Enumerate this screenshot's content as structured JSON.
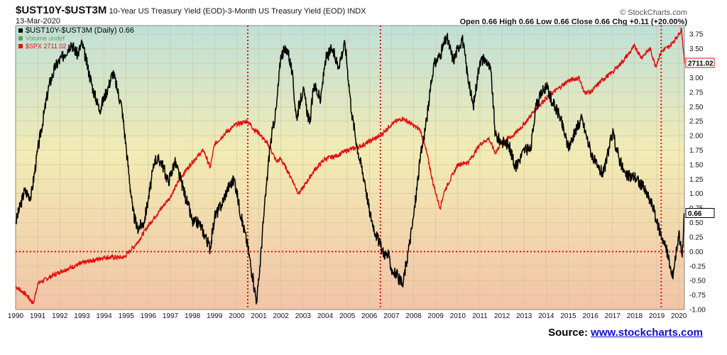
{
  "header": {
    "symbol": "$UST10Y-$UST3M",
    "description": "10-Year US Treasury Yield (EOD)-3-Month US Treasury Yield (EOD)",
    "exchange": "INDX",
    "date": "13-Mar-2020",
    "copyright": "© StockCharts.com",
    "quote": "Open 0.66  High 0.66  Low 0.66  Close 0.66  Chg +0.11 (+20.00%)"
  },
  "source": {
    "label": "Source:",
    "link": "www.stockcharts.com"
  },
  "colors": {
    "spread": "#000000",
    "spx": "#e01010",
    "marker": "#e01010",
    "bg_top": "#bfe0d8",
    "bg_mid": "#f2ebb4",
    "bg_bottom": "#f2c4a6"
  },
  "chart_data": {
    "type": "line",
    "x_axis": {
      "ticks": [
        "1990",
        "1991",
        "1992",
        "1993",
        "1994",
        "1995",
        "1996",
        "1997",
        "1998",
        "1999",
        "2000",
        "2001",
        "2002",
        "2003",
        "2004",
        "2005",
        "2006",
        "2007",
        "2008",
        "2009",
        "2010",
        "2011",
        "2012",
        "2013",
        "2014",
        "2015",
        "2016",
        "2017",
        "2018",
        "2019",
        "2020"
      ],
      "range": [
        1990,
        2020.25
      ]
    },
    "y_axis": {
      "ticks": [
        "3.75",
        "3.50",
        "3.25",
        "3.00",
        "2.75",
        "2.50",
        "2.25",
        "2.00",
        "1.75",
        "1.50",
        "1.25",
        "1.00",
        "0.75",
        "0.50",
        "0.25",
        "0.00",
        "-0.25",
        "-0.50",
        "-0.75",
        "-1.00"
      ],
      "range": [
        -1.0,
        3.9
      ]
    },
    "legend": [
      {
        "name": "$UST10Y-$UST3M (Daily) 0.66",
        "color": "#000000"
      },
      {
        "name": "Volume undef",
        "color": "#6a9a6a"
      },
      {
        "name": "$SPX 2711.02",
        "color": "#e01010"
      }
    ],
    "series": [
      {
        "name": "$UST10Y-$UST3M",
        "last_label": "0.66",
        "points": [
          [
            1990.0,
            0.5
          ],
          [
            1990.4,
            1.05
          ],
          [
            1990.7,
            0.95
          ],
          [
            1991.0,
            1.75
          ],
          [
            1991.5,
            2.85
          ],
          [
            1991.8,
            3.2
          ],
          [
            1992.2,
            3.4
          ],
          [
            1992.5,
            3.6
          ],
          [
            1992.8,
            3.4
          ],
          [
            1993.0,
            3.6
          ],
          [
            1993.5,
            2.8
          ],
          [
            1993.8,
            2.45
          ],
          [
            1994.2,
            2.85
          ],
          [
            1994.4,
            3.1
          ],
          [
            1994.8,
            2.5
          ],
          [
            1995.0,
            1.8
          ],
          [
            1995.3,
            0.7
          ],
          [
            1995.5,
            0.4
          ],
          [
            1995.8,
            0.5
          ],
          [
            1996.0,
            0.9
          ],
          [
            1996.3,
            1.6
          ],
          [
            1996.6,
            1.55
          ],
          [
            1996.9,
            1.2
          ],
          [
            1997.2,
            1.55
          ],
          [
            1997.5,
            1.2
          ],
          [
            1997.8,
            0.8
          ],
          [
            1998.0,
            0.5
          ],
          [
            1998.3,
            0.5
          ],
          [
            1998.6,
            0.25
          ],
          [
            1998.8,
            0.05
          ],
          [
            1999.0,
            0.6
          ],
          [
            1999.3,
            0.8
          ],
          [
            1999.6,
            1.1
          ],
          [
            1999.9,
            1.25
          ],
          [
            2000.2,
            0.6
          ],
          [
            2000.5,
            0.1
          ],
          [
            2000.7,
            -0.4
          ],
          [
            2000.9,
            -0.85
          ],
          [
            2001.0,
            -0.5
          ],
          [
            2001.2,
            0.5
          ],
          [
            2001.5,
            1.8
          ],
          [
            2001.8,
            2.5
          ],
          [
            2002.0,
            3.4
          ],
          [
            2002.3,
            3.5
          ],
          [
            2002.5,
            3.1
          ],
          [
            2002.7,
            2.3
          ],
          [
            2003.0,
            2.8
          ],
          [
            2003.3,
            2.2
          ],
          [
            2003.5,
            2.9
          ],
          [
            2003.8,
            2.6
          ],
          [
            2004.0,
            3.3
          ],
          [
            2004.3,
            3.5
          ],
          [
            2004.6,
            3.2
          ],
          [
            2004.9,
            3.6
          ],
          [
            2005.2,
            2.4
          ],
          [
            2005.5,
            1.7
          ],
          [
            2005.8,
            1.2
          ],
          [
            2006.0,
            0.7
          ],
          [
            2006.3,
            0.3
          ],
          [
            2006.6,
            0.0
          ],
          [
            2006.9,
            -0.1
          ],
          [
            2007.0,
            -0.3
          ],
          [
            2007.3,
            -0.45
          ],
          [
            2007.5,
            -0.6
          ],
          [
            2007.8,
            0.1
          ],
          [
            2008.0,
            0.6
          ],
          [
            2008.3,
            1.6
          ],
          [
            2008.6,
            2.3
          ],
          [
            2008.9,
            3.2
          ],
          [
            2009.2,
            3.4
          ],
          [
            2009.5,
            3.7
          ],
          [
            2009.8,
            3.3
          ],
          [
            2010.0,
            3.5
          ],
          [
            2010.2,
            3.7
          ],
          [
            2010.5,
            2.9
          ],
          [
            2010.7,
            2.5
          ],
          [
            2011.0,
            3.3
          ],
          [
            2011.3,
            3.3
          ],
          [
            2011.5,
            3.1
          ],
          [
            2011.7,
            2.0
          ],
          [
            2012.0,
            1.9
          ],
          [
            2012.3,
            1.85
          ],
          [
            2012.6,
            1.45
          ],
          [
            2013.0,
            1.75
          ],
          [
            2013.3,
            1.75
          ],
          [
            2013.5,
            2.45
          ],
          [
            2013.8,
            2.75
          ],
          [
            2014.0,
            2.85
          ],
          [
            2014.3,
            2.55
          ],
          [
            2014.6,
            2.35
          ],
          [
            2015.0,
            1.8
          ],
          [
            2015.3,
            2.05
          ],
          [
            2015.6,
            2.3
          ],
          [
            2016.0,
            1.75
          ],
          [
            2016.3,
            1.45
          ],
          [
            2016.6,
            1.35
          ],
          [
            2017.0,
            2.05
          ],
          [
            2017.3,
            1.6
          ],
          [
            2017.6,
            1.3
          ],
          [
            2018.0,
            1.3
          ],
          [
            2018.4,
            1.1
          ],
          [
            2018.8,
            0.8
          ],
          [
            2019.0,
            0.5
          ],
          [
            2019.3,
            0.2
          ],
          [
            2019.5,
            -0.05
          ],
          [
            2019.7,
            -0.45
          ],
          [
            2019.9,
            0.05
          ],
          [
            2020.0,
            0.35
          ],
          [
            2020.15,
            -0.1
          ],
          [
            2020.25,
            0.66
          ]
        ]
      },
      {
        "name": "$SPX",
        "last_label": "2711.02",
        "points": [
          [
            1990.0,
            -0.6
          ],
          [
            1990.5,
            -0.75
          ],
          [
            1990.8,
            -0.9
          ],
          [
            1991.0,
            -0.55
          ],
          [
            1991.5,
            -0.45
          ],
          [
            1992.0,
            -0.35
          ],
          [
            1993.0,
            -0.2
          ],
          [
            1994.0,
            -0.1
          ],
          [
            1994.9,
            -0.1
          ],
          [
            1995.5,
            0.15
          ],
          [
            1996.0,
            0.45
          ],
          [
            1996.5,
            0.7
          ],
          [
            1997.0,
            0.95
          ],
          [
            1997.5,
            1.3
          ],
          [
            1998.0,
            1.55
          ],
          [
            1998.5,
            1.75
          ],
          [
            1998.8,
            1.45
          ],
          [
            1999.0,
            1.85
          ],
          [
            1999.5,
            2.05
          ],
          [
            2000.0,
            2.2
          ],
          [
            2000.5,
            2.25
          ],
          [
            2000.8,
            2.1
          ],
          [
            2001.0,
            2.05
          ],
          [
            2001.5,
            1.8
          ],
          [
            2001.8,
            1.55
          ],
          [
            2002.0,
            1.6
          ],
          [
            2002.5,
            1.25
          ],
          [
            2002.8,
            1.0
          ],
          [
            2003.0,
            1.1
          ],
          [
            2003.5,
            1.4
          ],
          [
            2004.0,
            1.6
          ],
          [
            2004.5,
            1.65
          ],
          [
            2005.0,
            1.75
          ],
          [
            2005.5,
            1.8
          ],
          [
            2006.0,
            1.9
          ],
          [
            2006.5,
            2.0
          ],
          [
            2007.0,
            2.2
          ],
          [
            2007.5,
            2.3
          ],
          [
            2007.9,
            2.2
          ],
          [
            2008.3,
            2.1
          ],
          [
            2008.6,
            1.7
          ],
          [
            2008.9,
            1.15
          ],
          [
            2009.2,
            0.75
          ],
          [
            2009.4,
            1.05
          ],
          [
            2009.8,
            1.35
          ],
          [
            2010.0,
            1.5
          ],
          [
            2010.5,
            1.55
          ],
          [
            2011.0,
            1.85
          ],
          [
            2011.4,
            1.95
          ],
          [
            2011.7,
            1.7
          ],
          [
            2012.0,
            1.9
          ],
          [
            2012.5,
            2.0
          ],
          [
            2013.0,
            2.2
          ],
          [
            2013.5,
            2.45
          ],
          [
            2014.0,
            2.65
          ],
          [
            2014.5,
            2.8
          ],
          [
            2015.0,
            2.95
          ],
          [
            2015.5,
            3.0
          ],
          [
            2015.7,
            2.75
          ],
          [
            2016.0,
            2.75
          ],
          [
            2016.5,
            2.95
          ],
          [
            2017.0,
            3.1
          ],
          [
            2017.5,
            3.3
          ],
          [
            2018.0,
            3.55
          ],
          [
            2018.3,
            3.35
          ],
          [
            2018.7,
            3.5
          ],
          [
            2018.95,
            3.2
          ],
          [
            2019.2,
            3.45
          ],
          [
            2019.6,
            3.55
          ],
          [
            2020.0,
            3.75
          ],
          [
            2020.12,
            3.85
          ],
          [
            2020.2,
            3.5
          ],
          [
            2020.25,
            3.25
          ]
        ]
      }
    ],
    "markers": {
      "vertical_years": [
        2000.5,
        2006.5,
        2019.2
      ],
      "horizontal_value": 0.0
    },
    "grid": true,
    "legend_position": "top-left"
  }
}
